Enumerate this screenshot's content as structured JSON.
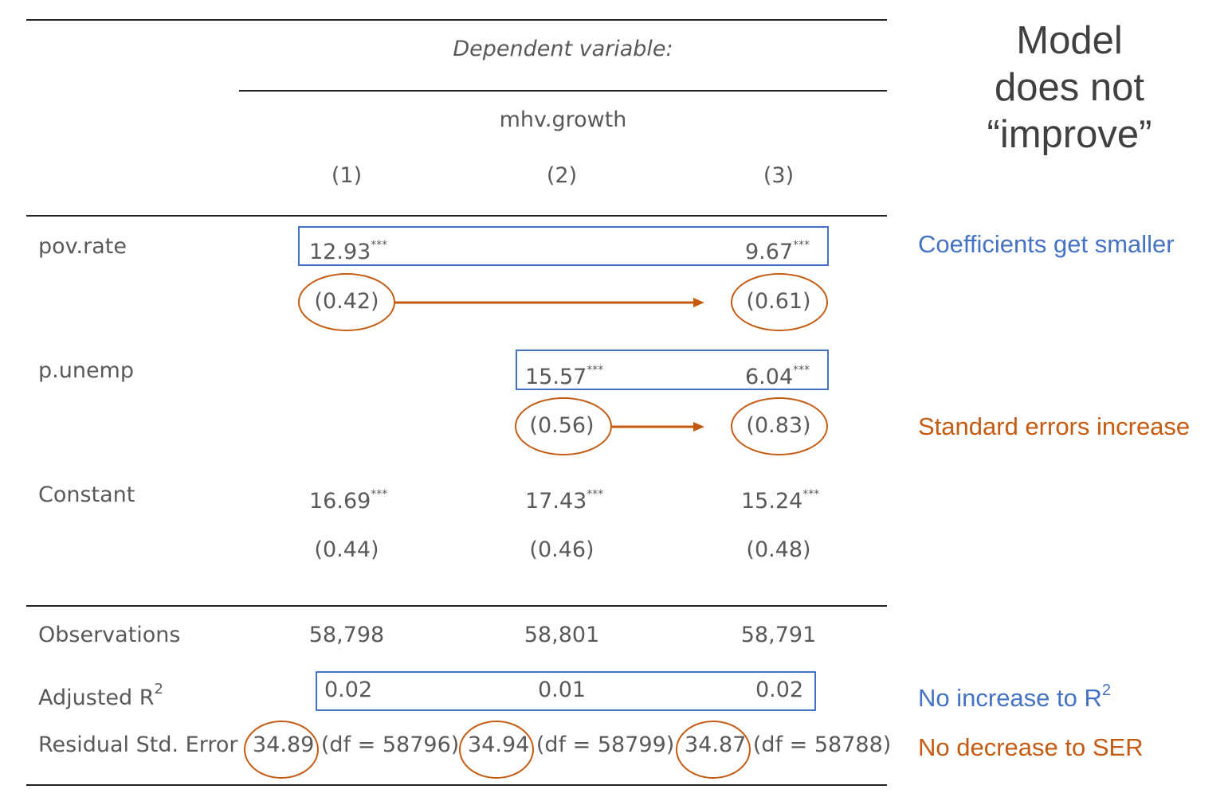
{
  "header": {
    "dependent_variable_label": "Dependent variable:",
    "dependent_variable_name": "mhv.growth",
    "columns": [
      "(1)",
      "(2)",
      "(3)"
    ]
  },
  "rows": {
    "pov_rate": {
      "label": "pov.rate",
      "coef1": "12.93",
      "coef3": "9.67",
      "se1": "(0.42)",
      "se3": "(0.61)"
    },
    "p_unemp": {
      "label": "p.unemp",
      "coef2": "15.57",
      "coef3": "6.04",
      "se2": "(0.56)",
      "se3": "(0.83)"
    },
    "constant": {
      "label": "Constant",
      "coef1": "16.69",
      "coef2": "17.43",
      "coef3": "15.24",
      "se1": "(0.44)",
      "se2": "(0.46)",
      "se3": "(0.48)"
    }
  },
  "stars": "***",
  "stats": {
    "observations": {
      "label": "Observations",
      "values": [
        "58,798",
        "58,801",
        "58,791"
      ]
    },
    "adj_r2": {
      "label": "Adjusted R",
      "label_sup": "2",
      "values": [
        "0.02",
        "0.01",
        "0.02"
      ]
    },
    "rse": {
      "label": "Residual Std. Error",
      "values": [
        "34.89",
        "34.94",
        "34.87"
      ],
      "df": [
        "(df = 58796)",
        "(df = 58799)",
        "(df = 58788)"
      ]
    }
  },
  "annotations": {
    "title_line1": "Model",
    "title_line2": "does not",
    "title_line3": "“improve”",
    "coefficients": "Coefficients get smaller",
    "std_errors": "Standard errors increase",
    "r2_prefix": "No increase to R",
    "r2_sup": "2",
    "ser": "No decrease to SER"
  },
  "colors": {
    "blue": "#4472C4",
    "orange": "#C55A11",
    "text": "#595959",
    "rule": "#222222"
  }
}
